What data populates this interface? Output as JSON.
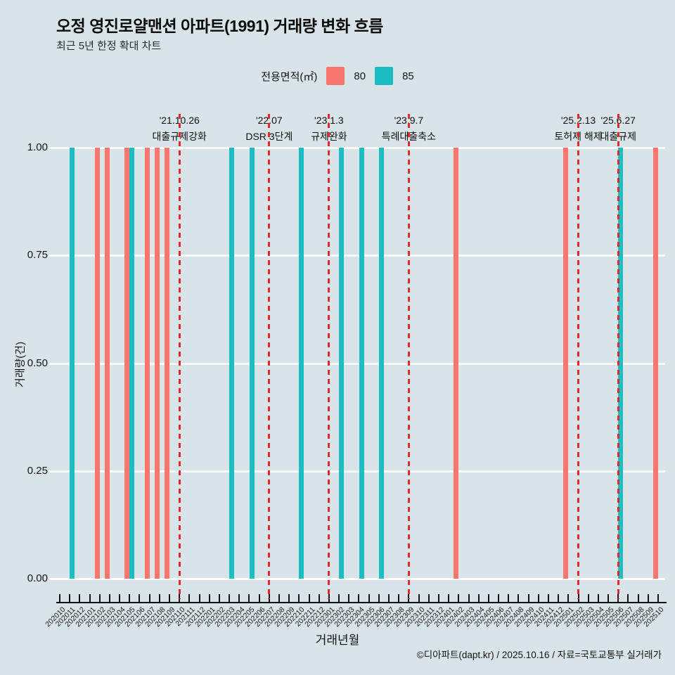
{
  "header": {
    "title": "오정 영진로얄맨션 아파트(1991) 거래량 변화 흐름",
    "subtitle": "최근 5년 한정 확대 차트"
  },
  "legend": {
    "title": "전용면적(㎡)",
    "items": [
      {
        "label": "80",
        "color": "#F8766D"
      },
      {
        "label": "85",
        "color": "#1CBDC3"
      }
    ]
  },
  "chart_data": {
    "type": "bar",
    "title": "오정 영진로얄맨션 아파트(1991) 거래량 변화 흐름",
    "subtitle": "최근 5년 한정 확대 차트",
    "xlabel": "거래년월",
    "ylabel": "거래량(건)",
    "ylim": [
      0,
      1
    ],
    "yticks": [
      {
        "label": "1.00",
        "value": 1.0
      },
      {
        "label": "0.75",
        "value": 0.75
      },
      {
        "label": "0.50",
        "value": 0.5
      },
      {
        "label": "0.25",
        "value": 0.25
      },
      {
        "label": "0.00",
        "value": 0.0
      }
    ],
    "grid": "horizontal-white",
    "legend_position": "top-center",
    "categories": [
      "202010",
      "202011",
      "202012",
      "202101",
      "202102",
      "202103",
      "202104",
      "202105",
      "202106",
      "202107",
      "202108",
      "202109",
      "202110",
      "202111",
      "202112",
      "202201",
      "202202",
      "202203",
      "202204",
      "202205",
      "202206",
      "202207",
      "202208",
      "202209",
      "202210",
      "202211",
      "202212",
      "202301",
      "202302",
      "202303",
      "202304",
      "202305",
      "202306",
      "202307",
      "202308",
      "202309",
      "202310",
      "202311",
      "202312",
      "202401",
      "202402",
      "202403",
      "202404",
      "202405",
      "202406",
      "202407",
      "202408",
      "202409",
      "202410",
      "202411",
      "202412",
      "202501",
      "202502",
      "202503",
      "202504",
      "202505",
      "202506",
      "202507",
      "202508",
      "202509",
      "202510"
    ],
    "series": [
      {
        "name": "80",
        "color": "#F8766D",
        "bar_value": 1,
        "months": [
          "202102",
          "202103",
          "202105",
          "202107",
          "202108",
          "202109",
          "202402",
          "202501",
          "202510"
        ]
      },
      {
        "name": "85",
        "color": "#1CBDC3",
        "bar_value": 1,
        "months": [
          "202011",
          "202105",
          "202203",
          "202205",
          "202210",
          "202302",
          "202304",
          "202306",
          "202506"
        ]
      }
    ],
    "annotations": [
      {
        "month": "202110",
        "date": "'21.10.26",
        "label": "대출규제강화"
      },
      {
        "month": "202207",
        "date": "'22.07",
        "label": "DSR 3단계"
      },
      {
        "month": "202301",
        "date": "'23.1.3",
        "label": "규제완화"
      },
      {
        "month": "202309",
        "date": "'23.9.7",
        "label": "특례대출축소"
      },
      {
        "month": "202502",
        "date": "'25.2.13",
        "label": "토허제 해제"
      },
      {
        "month": "202506",
        "date": "'25.6.27",
        "label": "대출규제"
      }
    ],
    "annotation_line_color": "#E3292B"
  },
  "colors": {
    "background": "#D9E4E8",
    "gridline": "#FFFFFF",
    "axis": "#141414",
    "series_80": "#F8766D",
    "series_85": "#1CBDC3",
    "annotation_line": "#E3292B"
  },
  "footer": {
    "credit": "©디아파트(dapt.kr) / 2025.10.16 / 자료=국토교통부 실거래가"
  }
}
